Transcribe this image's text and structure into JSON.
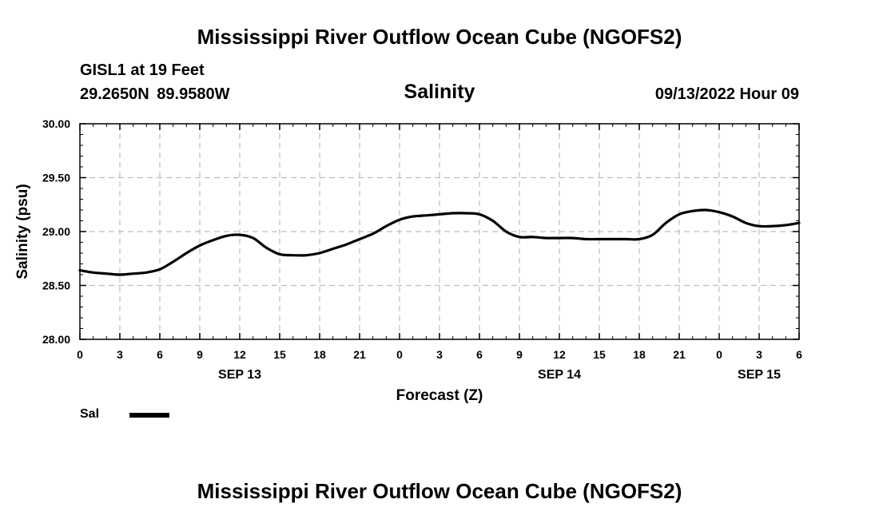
{
  "header": {
    "title": "Mississippi River Outflow Ocean Cube (NGOFS2)",
    "station": "GISL1 at 19 Feet",
    "coords": "29.2650N  89.9580W",
    "run_time": "09/13/2022 Hour 09"
  },
  "footer": {
    "title": "Mississippi River Outflow Ocean Cube (NGOFS2)"
  },
  "legend": {
    "series_label": "Sal",
    "placement": "bottom-left"
  },
  "chart_data": {
    "type": "line",
    "title": "Salinity",
    "xlabel": "Forecast (Z)",
    "ylabel": "Salinity (psu)",
    "xlim": [
      0,
      54
    ],
    "ylim": [
      28.0,
      30.0
    ],
    "grid": true,
    "y_ticks": [
      "28.00",
      "28.50",
      "29.00",
      "29.50",
      "30.00"
    ],
    "x_ticks": [
      {
        "hour": 0,
        "label": "0"
      },
      {
        "hour": 3,
        "label": "3"
      },
      {
        "hour": 6,
        "label": "6"
      },
      {
        "hour": 9,
        "label": "9"
      },
      {
        "hour": 12,
        "label": "12"
      },
      {
        "hour": 15,
        "label": "15"
      },
      {
        "hour": 18,
        "label": "18"
      },
      {
        "hour": 21,
        "label": "21"
      },
      {
        "hour": 24,
        "label": "0"
      },
      {
        "hour": 27,
        "label": "3"
      },
      {
        "hour": 30,
        "label": "6"
      },
      {
        "hour": 33,
        "label": "9"
      },
      {
        "hour": 36,
        "label": "12"
      },
      {
        "hour": 39,
        "label": "15"
      },
      {
        "hour": 42,
        "label": "18"
      },
      {
        "hour": 45,
        "label": "21"
      },
      {
        "hour": 48,
        "label": "0"
      },
      {
        "hour": 51,
        "label": "3"
      },
      {
        "hour": 54,
        "label": "6"
      }
    ],
    "day_labels": [
      {
        "hour": 12,
        "label": "SEP 13"
      },
      {
        "hour": 36,
        "label": "SEP 14"
      },
      {
        "hour": 51,
        "label": "SEP 15"
      }
    ],
    "series": [
      {
        "name": "Sal",
        "color": "#000000",
        "x": [
          0,
          1,
          2,
          3,
          4,
          5,
          6,
          7,
          8,
          9,
          10,
          11,
          12,
          13,
          14,
          15,
          16,
          17,
          18,
          19,
          20,
          21,
          22,
          23,
          24,
          25,
          26,
          27,
          28,
          29,
          30,
          31,
          32,
          33,
          34,
          35,
          36,
          37,
          38,
          39,
          40,
          41,
          42,
          43,
          44,
          45,
          46,
          47,
          48,
          49,
          50,
          51,
          52,
          53,
          54
        ],
        "y": [
          28.64,
          28.62,
          28.61,
          28.6,
          28.61,
          28.62,
          28.65,
          28.72,
          28.8,
          28.87,
          28.92,
          28.96,
          28.97,
          28.94,
          28.85,
          28.79,
          28.78,
          28.78,
          28.8,
          28.84,
          28.88,
          28.93,
          28.98,
          29.05,
          29.11,
          29.14,
          29.15,
          29.16,
          29.17,
          29.17,
          29.16,
          29.1,
          29.0,
          28.95,
          28.95,
          28.94,
          28.94,
          28.94,
          28.93,
          28.93,
          28.93,
          28.93,
          28.93,
          28.97,
          29.08,
          29.16,
          29.19,
          29.2,
          29.18,
          29.14,
          29.08,
          29.05,
          29.05,
          29.06,
          29.08
        ]
      }
    ]
  }
}
